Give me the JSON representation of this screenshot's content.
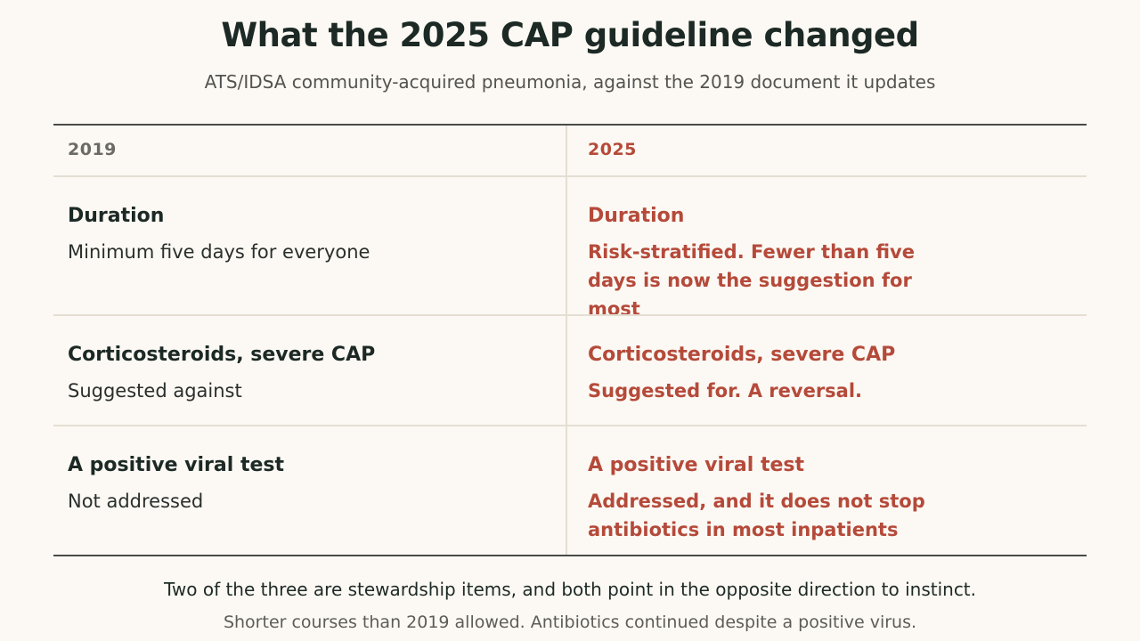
{
  "header": {
    "title": "What the 2025 CAP guideline changed",
    "subtitle": "ATS/IDSA community-acquired pneumonia, against the 2019 document it updates"
  },
  "table": {
    "columns": [
      "2019",
      "2025"
    ],
    "rows": [
      {
        "left_label": "Duration",
        "left_value": "Minimum five days for everyone",
        "right_label": "Duration",
        "right_value": "Risk-stratified. Fewer than five days is now the suggestion for most"
      },
      {
        "left_label": "Corticosteroids, severe CAP",
        "left_value": "Suggested against",
        "right_label": "Corticosteroids, severe CAP",
        "right_value": "Suggested for. A reversal."
      },
      {
        "left_label": "A positive viral test",
        "left_value": "Not addressed",
        "right_label": "A positive viral test",
        "right_value": "Addressed, and it does not stop antibiotics in most inpatients"
      }
    ]
  },
  "footer": {
    "line1": "Two of the three are stewardship items, and both point in the opposite direction to instinct.",
    "line2": "Shorter courses than 2019 allowed. Antibiotics continued despite a positive virus."
  },
  "colors": {
    "background": "#fcf9f4",
    "accent": "#b54a3a",
    "text": "#1c2925"
  }
}
